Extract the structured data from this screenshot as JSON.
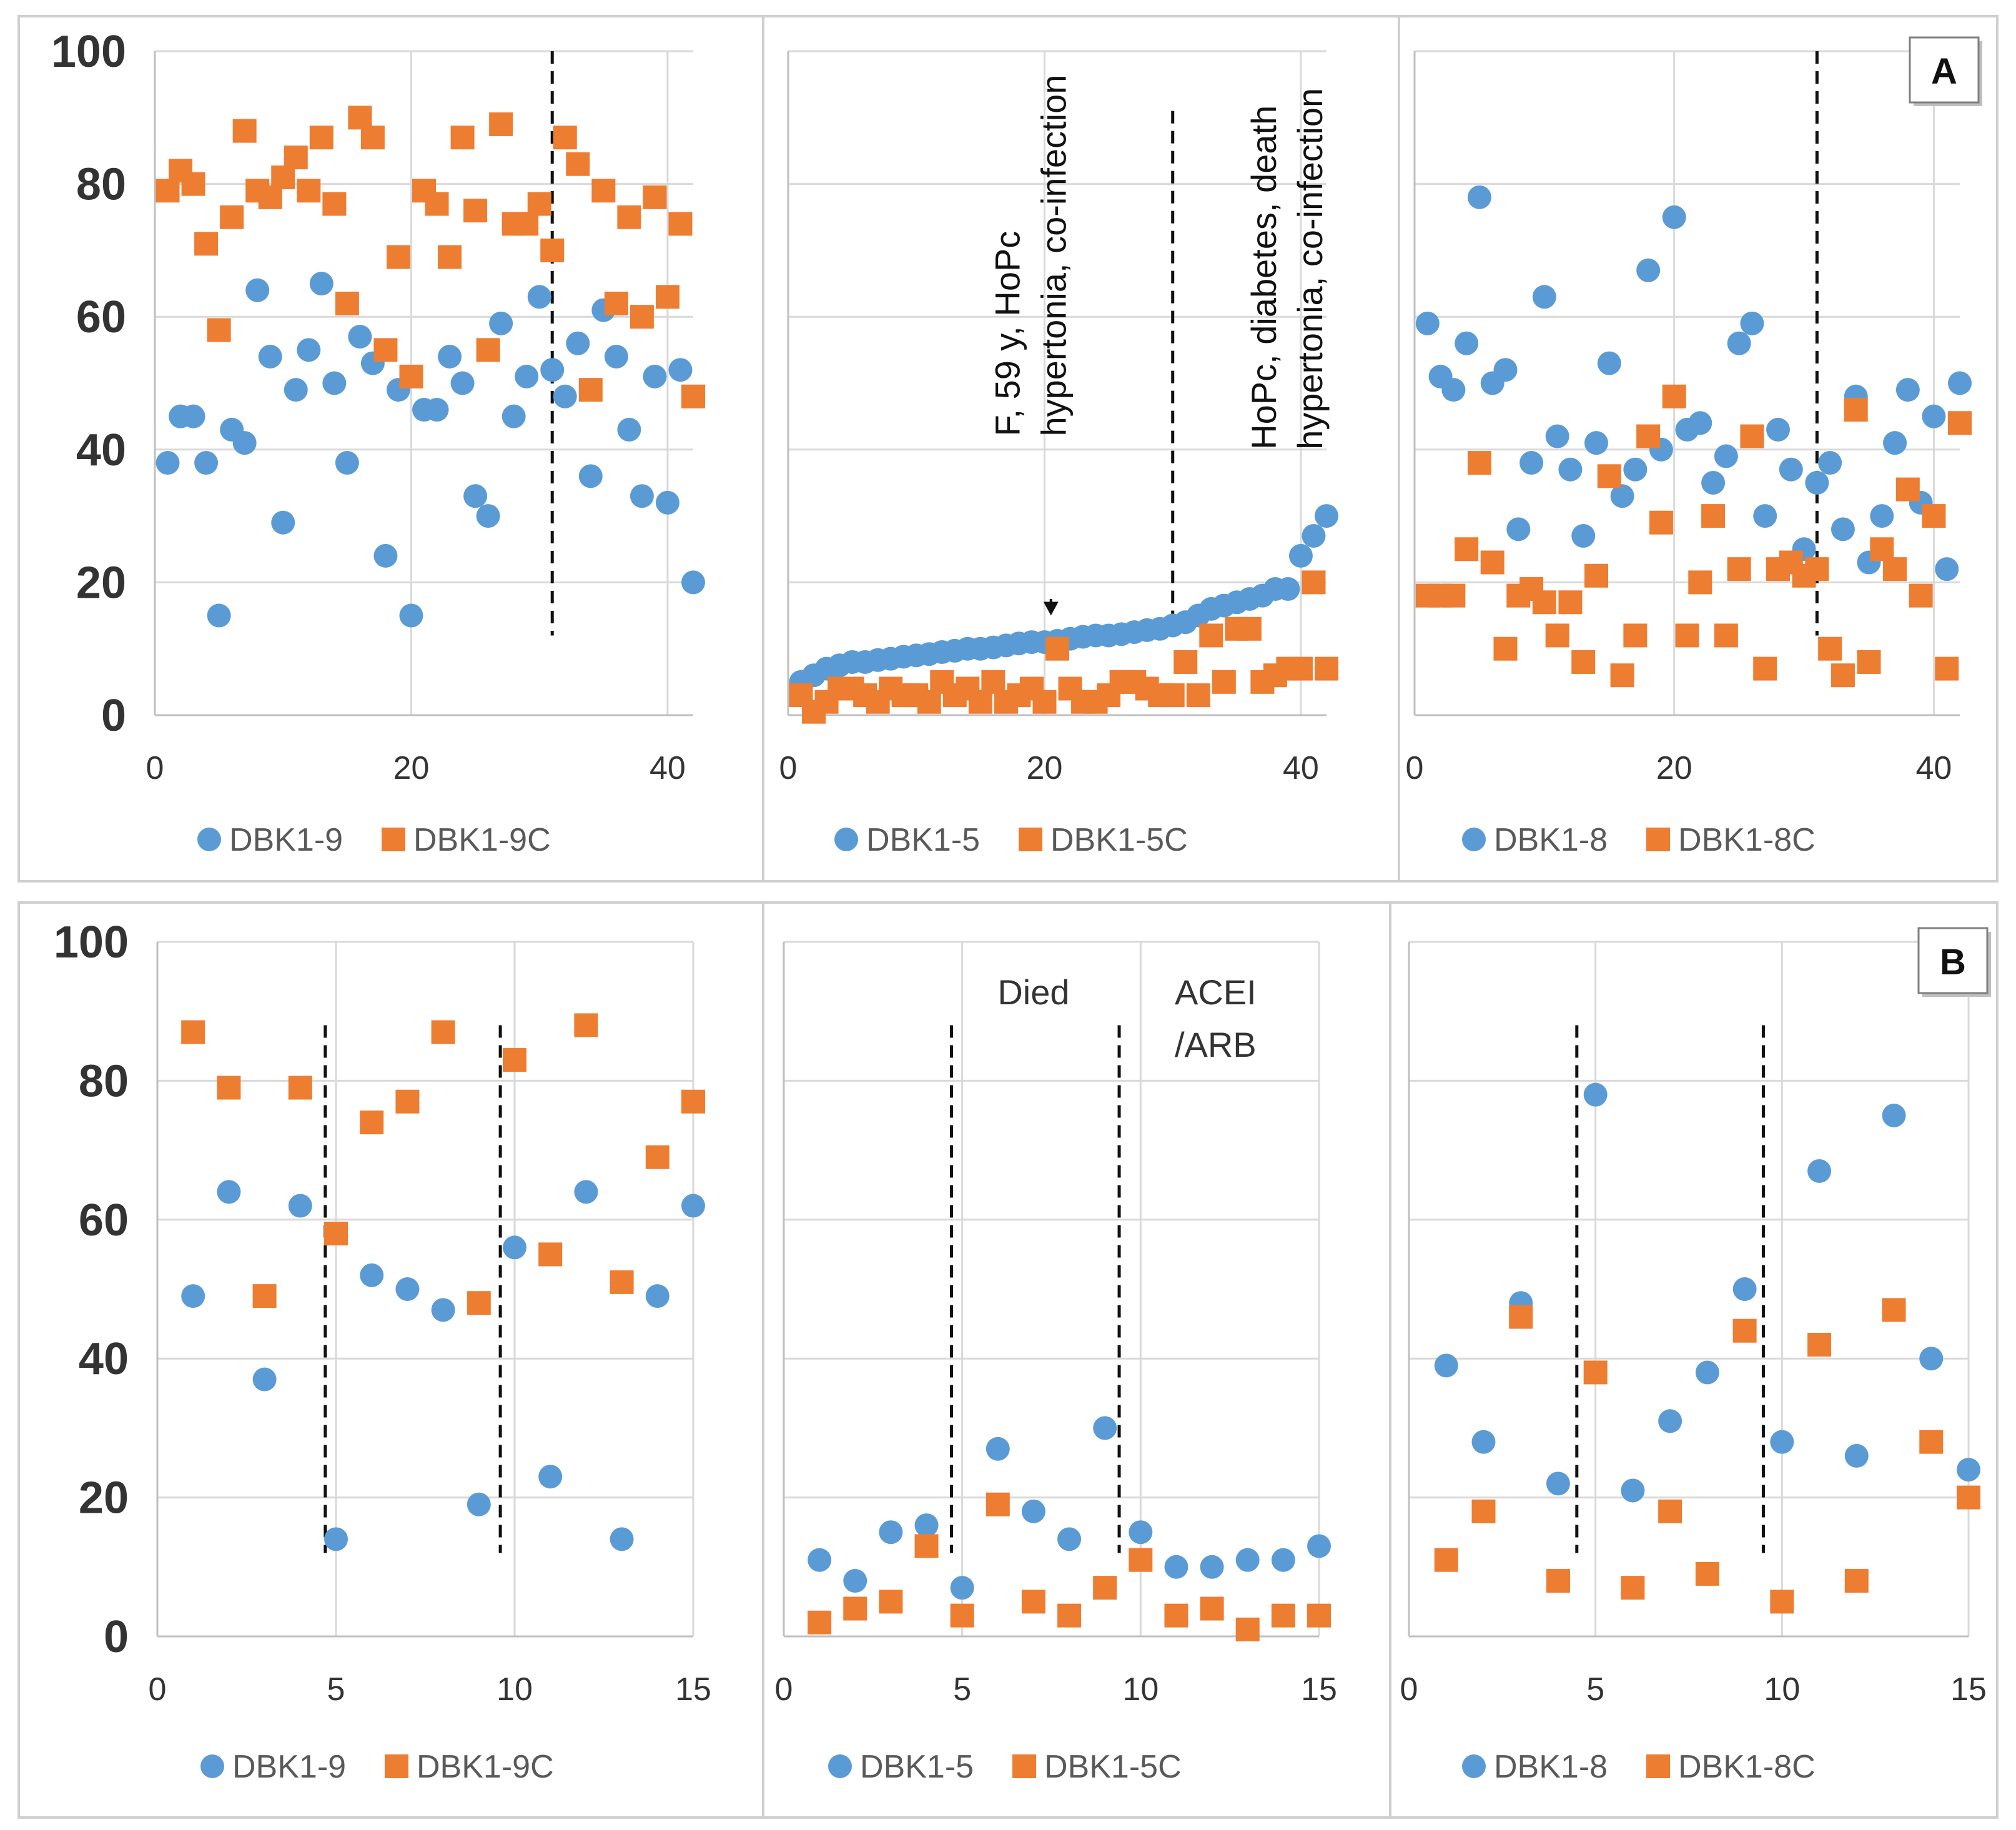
{
  "colors": {
    "blue": "#5b9bd5",
    "orange": "#ed7d31",
    "grid": "#d9d9d9",
    "frame": "#bfbfbf",
    "axis_text": "#333333",
    "legend_text": "#595959"
  },
  "chart_data": [
    {
      "id": "a1",
      "type": "scatter",
      "panel_label": "",
      "x_ticks": [
        0,
        20,
        40
      ],
      "y_ticks": [
        0,
        20,
        40,
        60,
        80,
        100
      ],
      "show_y_ticks": true,
      "xlim": [
        0,
        42
      ],
      "ylim": [
        0,
        100
      ],
      "dashed_lines_x": [
        31
      ],
      "legend": [
        "DBK1-9",
        "DBK1-9C"
      ],
      "series": [
        {
          "name": "DBK1-9",
          "marker": "circle",
          "color": "#5b9bd5",
          "x": [
            1,
            2,
            3,
            4,
            5,
            6,
            7,
            8,
            9,
            10,
            11,
            12,
            13,
            14,
            15,
            16,
            17,
            18,
            19,
            20,
            21,
            22,
            23,
            24,
            25,
            26,
            27,
            28,
            29,
            30,
            31,
            32,
            33,
            34,
            35,
            36,
            37,
            38,
            39,
            40,
            41,
            42
          ],
          "y": [
            38,
            45,
            45,
            38,
            15,
            43,
            41,
            64,
            54,
            29,
            49,
            55,
            65,
            50,
            38,
            57,
            53,
            24,
            49,
            15,
            46,
            46,
            54,
            50,
            33,
            30,
            59,
            45,
            51,
            63,
            52,
            48,
            56,
            36,
            61,
            54,
            43,
            33,
            51,
            32,
            52,
            20
          ]
        },
        {
          "name": "DBK1-9C",
          "marker": "square",
          "color": "#ed7d31",
          "x": [
            1,
            2,
            3,
            4,
            5,
            6,
            7,
            8,
            9,
            10,
            11,
            12,
            13,
            14,
            15,
            16,
            17,
            18,
            19,
            20,
            21,
            22,
            23,
            24,
            25,
            26,
            27,
            28,
            29,
            30,
            31,
            32,
            33,
            34,
            35,
            36,
            37,
            38,
            39,
            40,
            41,
            42
          ],
          "y": [
            79,
            82,
            80,
            71,
            58,
            75,
            88,
            79,
            78,
            81,
            84,
            79,
            87,
            77,
            62,
            90,
            87,
            55,
            69,
            51,
            79,
            77,
            69,
            87,
            76,
            55,
            89,
            74,
            74,
            77,
            70,
            87,
            83,
            49,
            79,
            62,
            75,
            60,
            78,
            63,
            74,
            48
          ]
        }
      ],
      "annotations": []
    },
    {
      "id": "a2",
      "type": "scatter",
      "panel_label": "",
      "x_ticks": [
        0,
        20,
        40
      ],
      "y_ticks": [
        0,
        20,
        40,
        60,
        80,
        100
      ],
      "show_y_ticks": false,
      "xlim": [
        0,
        42
      ],
      "ylim": [
        0,
        100
      ],
      "dashed_lines_x": [
        30
      ],
      "legend": [
        "DBK1-5",
        "DBK1-5C"
      ],
      "series": [
        {
          "name": "DBK1-5",
          "marker": "circle",
          "color": "#5b9bd5",
          "x": [
            1,
            2,
            3,
            4,
            5,
            6,
            7,
            8,
            9,
            10,
            11,
            12,
            13,
            14,
            15,
            16,
            17,
            18,
            19,
            20,
            21,
            22,
            23,
            24,
            25,
            26,
            27,
            28,
            29,
            30,
            31,
            32,
            33,
            34,
            35,
            36,
            37,
            38,
            39,
            40,
            41,
            42
          ],
          "y": [
            5,
            6,
            7,
            7.5,
            8,
            8,
            8.3,
            8.5,
            8.8,
            9,
            9.2,
            9.5,
            9.7,
            10,
            10,
            10.2,
            10.5,
            10.8,
            11,
            11,
            11.2,
            11.5,
            11.8,
            12,
            12,
            12.2,
            12.5,
            12.8,
            13,
            13.5,
            14,
            15,
            16,
            16.5,
            17,
            17.5,
            18,
            19,
            19,
            24,
            27,
            30
          ]
        },
        {
          "name": "DBK1-5C",
          "marker": "square",
          "color": "#ed7d31",
          "x": [
            1,
            2,
            3,
            4,
            5,
            6,
            7,
            8,
            9,
            10,
            11,
            12,
            13,
            14,
            15,
            16,
            17,
            18,
            19,
            20,
            21,
            22,
            23,
            24,
            25,
            26,
            27,
            28,
            29,
            30,
            31,
            32,
            33,
            34,
            35,
            36,
            37,
            38,
            39,
            40,
            41,
            42
          ],
          "y": [
            3,
            0.5,
            2,
            4,
            4,
            3,
            2,
            4,
            3,
            3,
            2,
            5,
            3,
            4,
            2,
            5,
            2,
            3,
            4,
            2,
            10,
            4,
            2,
            2,
            3,
            5,
            5,
            4,
            3,
            3,
            8,
            3,
            12,
            5,
            13,
            13,
            5,
            6,
            7,
            7,
            20,
            7
          ]
        }
      ],
      "annotations": [
        {
          "lines": [
            "F, 59 y, HoPc",
            "hypertonia, co-infection"
          ],
          "x": 20.5,
          "y": 42,
          "arrow_to_y": 15
        },
        {
          "lines": [
            "HoPc, diabetes, death",
            "hypertonia, co-infection"
          ],
          "x": 40.5,
          "y": 40,
          "arrow_to_y": null
        }
      ]
    },
    {
      "id": "a3",
      "type": "scatter",
      "panel_label": "A",
      "x_ticks": [
        0,
        20,
        40
      ],
      "y_ticks": [
        0,
        20,
        40,
        60,
        80,
        100
      ],
      "show_y_ticks": false,
      "xlim": [
        0,
        42
      ],
      "ylim": [
        0,
        100
      ],
      "dashed_lines_x": [
        31
      ],
      "legend": [
        "DBK1-8",
        "DBK1-8C"
      ],
      "series": [
        {
          "name": "DBK1-8",
          "marker": "circle",
          "color": "#5b9bd5",
          "x": [
            1,
            2,
            3,
            4,
            5,
            6,
            7,
            8,
            9,
            10,
            11,
            12,
            13,
            14,
            15,
            16,
            17,
            18,
            19,
            20,
            21,
            22,
            23,
            24,
            25,
            26,
            27,
            28,
            29,
            30,
            31,
            32,
            33,
            34,
            35,
            36,
            37,
            38,
            39,
            40,
            41,
            42
          ],
          "y": [
            59,
            51,
            49,
            56,
            78,
            50,
            52,
            28,
            38,
            63,
            42,
            37,
            27,
            41,
            53,
            33,
            37,
            67,
            40,
            75,
            43,
            44,
            35,
            39,
            56,
            59,
            30,
            43,
            37,
            25,
            35,
            38,
            28,
            48,
            23,
            30,
            41,
            49,
            32,
            45,
            22,
            50
          ]
        },
        {
          "name": "DBK1-8C",
          "marker": "square",
          "color": "#ed7d31",
          "x": [
            1,
            2,
            3,
            4,
            5,
            6,
            7,
            8,
            9,
            10,
            11,
            12,
            13,
            14,
            15,
            16,
            17,
            18,
            19,
            20,
            21,
            22,
            23,
            24,
            25,
            26,
            27,
            28,
            29,
            30,
            31,
            32,
            33,
            34,
            35,
            36,
            37,
            38,
            39,
            40,
            41,
            42
          ],
          "y": [
            18,
            18,
            18,
            25,
            38,
            23,
            10,
            18,
            19,
            17,
            12,
            17,
            8,
            21,
            36,
            6,
            12,
            42,
            29,
            48,
            12,
            20,
            30,
            12,
            22,
            42,
            7,
            22,
            23,
            21,
            22,
            10,
            6,
            46,
            8,
            25,
            22,
            34,
            18,
            30,
            7,
            44
          ]
        }
      ],
      "annotations": []
    },
    {
      "id": "b1",
      "type": "scatter",
      "panel_label": "",
      "x_ticks": [
        0,
        5,
        10,
        15
      ],
      "y_ticks": [
        0,
        20,
        40,
        60,
        80,
        100
      ],
      "show_y_ticks": true,
      "xlim": [
        0,
        15
      ],
      "ylim": [
        0,
        100
      ],
      "dashed_lines_x": [
        4.7,
        9.6
      ],
      "legend": [
        "DBK1-9",
        "DBK1-9C"
      ],
      "series": [
        {
          "name": "DBK1-9",
          "marker": "circle",
          "color": "#5b9bd5",
          "x": [
            1,
            2,
            3,
            4,
            5,
            6,
            7,
            8,
            9,
            10,
            11,
            12,
            13,
            14,
            15
          ],
          "y": [
            49,
            64,
            37,
            62,
            14,
            52,
            50,
            47,
            19,
            56,
            23,
            64,
            14,
            49,
            62
          ]
        },
        {
          "name": "DBK1-9C",
          "marker": "square",
          "color": "#ed7d31",
          "x": [
            1,
            2,
            3,
            4,
            5,
            6,
            7,
            8,
            9,
            10,
            11,
            12,
            13,
            14,
            15
          ],
          "y": [
            87,
            79,
            49,
            79,
            58,
            74,
            77,
            87,
            48,
            83,
            55,
            88,
            51,
            69,
            77
          ]
        }
      ],
      "annotations": []
    },
    {
      "id": "b2",
      "type": "scatter",
      "panel_label": "",
      "x_ticks": [
        0,
        5,
        10,
        15
      ],
      "y_ticks": [
        0,
        20,
        40,
        60,
        80,
        100
      ],
      "show_y_ticks": false,
      "xlim": [
        0,
        15
      ],
      "ylim": [
        0,
        100
      ],
      "dashed_lines_x": [
        4.7,
        9.4
      ],
      "legend": [
        "DBK1-5",
        "DBK1-5C"
      ],
      "series": [
        {
          "name": "DBK1-5",
          "marker": "circle",
          "color": "#5b9bd5",
          "x": [
            1,
            2,
            3,
            4,
            5,
            6,
            7,
            8,
            9,
            10,
            11,
            12,
            13,
            14,
            15
          ],
          "y": [
            11,
            8,
            15,
            16,
            7,
            27,
            18,
            14,
            30,
            15,
            10,
            10,
            11,
            11,
            13
          ]
        },
        {
          "name": "DBK1-5C",
          "marker": "square",
          "color": "#ed7d31",
          "x": [
            1,
            2,
            3,
            4,
            5,
            6,
            7,
            8,
            9,
            10,
            11,
            12,
            13,
            14,
            15
          ],
          "y": [
            2,
            4,
            5,
            13,
            3,
            19,
            5,
            3,
            7,
            11,
            3,
            4,
            1,
            3,
            3
          ]
        }
      ],
      "annotations": [
        {
          "lines": [
            "Died"
          ],
          "x": 7,
          "y": 91,
          "arrow_to_y": null
        },
        {
          "lines": [
            "ACEI",
            "/ARB"
          ],
          "x": 12.1,
          "y": 91,
          "arrow_to_y": null
        }
      ]
    },
    {
      "id": "b3",
      "type": "scatter",
      "panel_label": "B",
      "x_ticks": [
        0,
        5,
        10,
        15
      ],
      "y_ticks": [
        0,
        20,
        40,
        60,
        80,
        100
      ],
      "show_y_ticks": false,
      "xlim": [
        0,
        15
      ],
      "ylim": [
        0,
        100
      ],
      "dashed_lines_x": [
        4.5,
        9.5
      ],
      "legend": [
        "DBK1-8",
        "DBK1-8C"
      ],
      "series": [
        {
          "name": "DBK1-8",
          "marker": "circle",
          "color": "#5b9bd5",
          "x": [
            1,
            2,
            3,
            4,
            5,
            6,
            7,
            8,
            9,
            10,
            11,
            12,
            13,
            14,
            15
          ],
          "y": [
            39,
            28,
            48,
            22,
            78,
            21,
            31,
            38,
            50,
            28,
            67,
            26,
            75,
            40,
            24
          ]
        },
        {
          "name": "DBK1-8C",
          "marker": "square",
          "color": "#ed7d31",
          "x": [
            1,
            2,
            3,
            4,
            5,
            6,
            7,
            8,
            9,
            10,
            11,
            12,
            13,
            14,
            15
          ],
          "y": [
            11,
            18,
            46,
            8,
            38,
            7,
            18,
            9,
            44,
            5,
            42,
            8,
            47,
            28,
            20
          ]
        }
      ],
      "annotations": []
    }
  ]
}
